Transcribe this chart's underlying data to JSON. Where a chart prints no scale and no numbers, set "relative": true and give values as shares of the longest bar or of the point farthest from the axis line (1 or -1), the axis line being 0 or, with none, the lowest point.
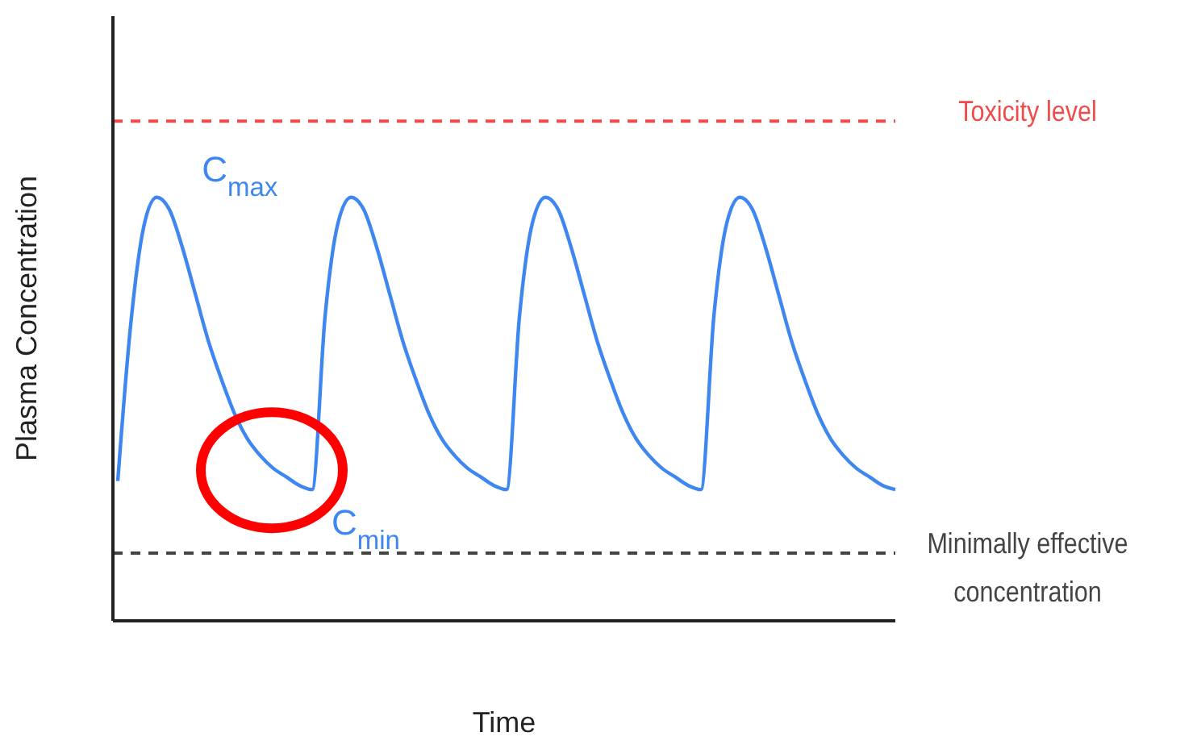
{
  "chart_data": {
    "type": "line",
    "relative": true,
    "xlabel": "Time",
    "ylabel": "Plasma Concentration",
    "categories": [
      null,
      null,
      null,
      null,
      null,
      null,
      null,
      null,
      null,
      null,
      null,
      null,
      null,
      null,
      null,
      null,
      null,
      null,
      null,
      null,
      null,
      null,
      null,
      null,
      null,
      null,
      null,
      null,
      null,
      null,
      null,
      null,
      null,
      null,
      null,
      null,
      null,
      null,
      null,
      null,
      null,
      null,
      null,
      null,
      null,
      null,
      null,
      null,
      null,
      null,
      null,
      null,
      null,
      null,
      null,
      null,
      null,
      null,
      null,
      null,
      null
    ],
    "series": [
      {
        "color": "#3f87f0",
        "values": [
          0.33,
          0.7,
          0.93,
          1.0,
          0.97,
          0.88,
          0.77,
          0.66,
          0.57,
          0.49,
          0.43,
          0.39,
          0.36,
          0.34,
          0.32,
          0.31,
          0.72,
          0.94,
          1.0,
          0.97,
          0.88,
          0.77,
          0.66,
          0.57,
          0.49,
          0.43,
          0.39,
          0.36,
          0.34,
          0.32,
          0.31,
          0.72,
          0.94,
          1.0,
          0.97,
          0.88,
          0.77,
          0.66,
          0.57,
          0.49,
          0.43,
          0.39,
          0.36,
          0.34,
          0.32,
          0.31,
          0.72,
          0.94,
          1.0,
          0.97,
          0.88,
          0.77,
          0.66,
          0.57,
          0.49,
          0.43,
          0.39,
          0.36,
          0.34,
          0.32,
          0.31
        ]
      }
    ],
    "ref_lines": [
      {
        "axis": "y",
        "value": 1.18,
        "label": "Toxicity level",
        "color": "#f04a4a",
        "line_style": "dashed"
      },
      {
        "axis": "y",
        "value": 0.16,
        "label": "Minimally effective concentration",
        "color": "#444444",
        "line_style": "dashed"
      }
    ],
    "annotations": [
      "C$_{max}$",
      "C$_{min}$"
    ],
    "grid": false,
    "legend": false
  }
}
